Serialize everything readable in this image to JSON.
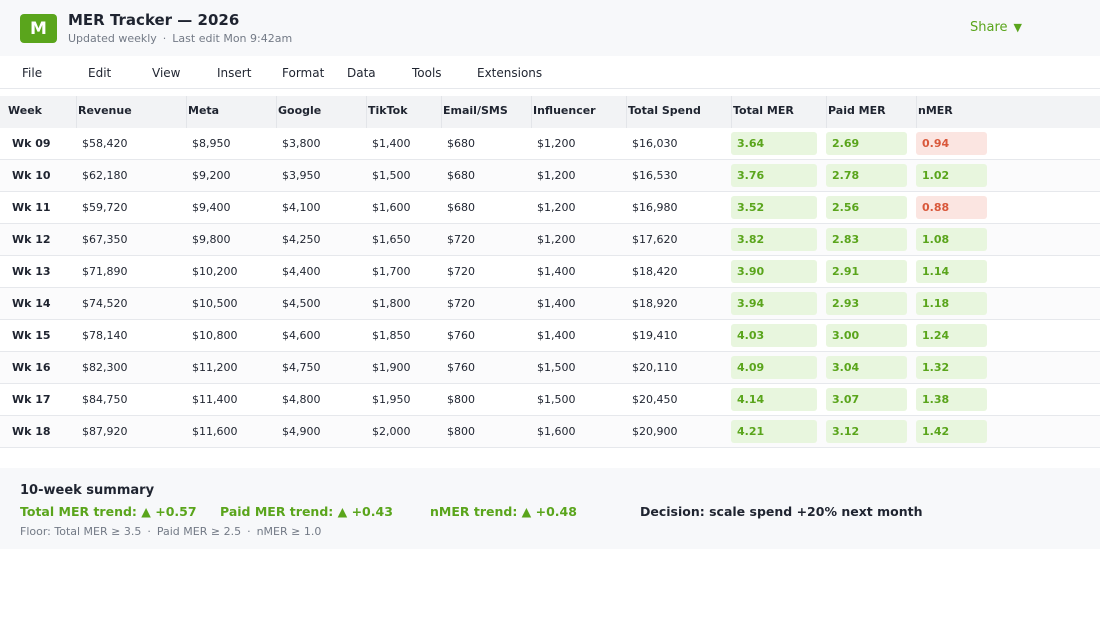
{
  "header": {
    "logo_letter": "M",
    "title": "MER Tracker — 2026",
    "updated": "Updated weekly",
    "separator": "·",
    "last_edit": "Last edit Mon 9:42am",
    "share_label": "Share",
    "share_caret": "▼"
  },
  "menu": [
    "File",
    "Edit",
    "View",
    "Insert",
    "Format",
    "Data",
    "Tools",
    "Extensions"
  ],
  "table": {
    "columns": [
      "Week",
      "Revenue",
      "Meta",
      "Google",
      "TikTok",
      "Email/SMS",
      "Influencer",
      "Total Spend",
      "Total MER",
      "Paid MER",
      "nMER"
    ],
    "rows": [
      {
        "week": "Wk 09",
        "revenue": "$58,420",
        "meta": "$8,950",
        "google": "$3,800",
        "tiktok": "$1,400",
        "email": "$680",
        "influencer": "$1,200",
        "spend": "$16,030",
        "total_mer": "3.64",
        "paid_mer": "2.69",
        "nmer": "0.94",
        "nmer_status": "bad"
      },
      {
        "week": "Wk 10",
        "revenue": "$62,180",
        "meta": "$9,200",
        "google": "$3,950",
        "tiktok": "$1,500",
        "email": "$680",
        "influencer": "$1,200",
        "spend": "$16,530",
        "total_mer": "3.76",
        "paid_mer": "2.78",
        "nmer": "1.02",
        "nmer_status": "good"
      },
      {
        "week": "Wk 11",
        "revenue": "$59,720",
        "meta": "$9,400",
        "google": "$4,100",
        "tiktok": "$1,600",
        "email": "$680",
        "influencer": "$1,200",
        "spend": "$16,980",
        "total_mer": "3.52",
        "paid_mer": "2.56",
        "nmer": "0.88",
        "nmer_status": "bad"
      },
      {
        "week": "Wk 12",
        "revenue": "$67,350",
        "meta": "$9,800",
        "google": "$4,250",
        "tiktok": "$1,650",
        "email": "$720",
        "influencer": "$1,200",
        "spend": "$17,620",
        "total_mer": "3.82",
        "paid_mer": "2.83",
        "nmer": "1.08",
        "nmer_status": "good"
      },
      {
        "week": "Wk 13",
        "revenue": "$71,890",
        "meta": "$10,200",
        "google": "$4,400",
        "tiktok": "$1,700",
        "email": "$720",
        "influencer": "$1,400",
        "spend": "$18,420",
        "total_mer": "3.90",
        "paid_mer": "2.91",
        "nmer": "1.14",
        "nmer_status": "good"
      },
      {
        "week": "Wk 14",
        "revenue": "$74,520",
        "meta": "$10,500",
        "google": "$4,500",
        "tiktok": "$1,800",
        "email": "$720",
        "influencer": "$1,400",
        "spend": "$18,920",
        "total_mer": "3.94",
        "paid_mer": "2.93",
        "nmer": "1.18",
        "nmer_status": "good"
      },
      {
        "week": "Wk 15",
        "revenue": "$78,140",
        "meta": "$10,800",
        "google": "$4,600",
        "tiktok": "$1,850",
        "email": "$760",
        "influencer": "$1,400",
        "spend": "$19,410",
        "total_mer": "4.03",
        "paid_mer": "3.00",
        "nmer": "1.24",
        "nmer_status": "good"
      },
      {
        "week": "Wk 16",
        "revenue": "$82,300",
        "meta": "$11,200",
        "google": "$4,750",
        "tiktok": "$1,900",
        "email": "$760",
        "influencer": "$1,500",
        "spend": "$20,110",
        "total_mer": "4.09",
        "paid_mer": "3.04",
        "nmer": "1.32",
        "nmer_status": "good"
      },
      {
        "week": "Wk 17",
        "revenue": "$84,750",
        "meta": "$11,400",
        "google": "$4,800",
        "tiktok": "$1,950",
        "email": "$800",
        "influencer": "$1,500",
        "spend": "$20,450",
        "total_mer": "4.14",
        "paid_mer": "3.07",
        "nmer": "1.38",
        "nmer_status": "good"
      },
      {
        "week": "Wk 18",
        "revenue": "$87,920",
        "meta": "$11,600",
        "google": "$4,900",
        "tiktok": "$2,000",
        "email": "$800",
        "influencer": "$1,600",
        "spend": "$20,900",
        "total_mer": "4.21",
        "paid_mer": "3.12",
        "nmer": "1.42",
        "nmer_status": "good"
      }
    ]
  },
  "summary": {
    "title": "10-week summary",
    "total_mer_trend": "Total MER trend: ▲ +0.57",
    "paid_mer_trend": "Paid MER trend: ▲ +0.43",
    "nmer_trend": "nMER trend: ▲ +0.48",
    "decision": "Decision: scale spend +20% next month",
    "floor_total": "Floor: Total MER ≥ 3.5",
    "floor_paid": "Paid MER ≥ 2.5",
    "floor_nmer": "nMER ≥ 1.0",
    "separator": "·"
  },
  "colors": {
    "accent_green": "#5aa51c",
    "good_bg": "#e8f6de",
    "bad_text": "#d9583b",
    "bad_bg": "#fbe5e1"
  }
}
